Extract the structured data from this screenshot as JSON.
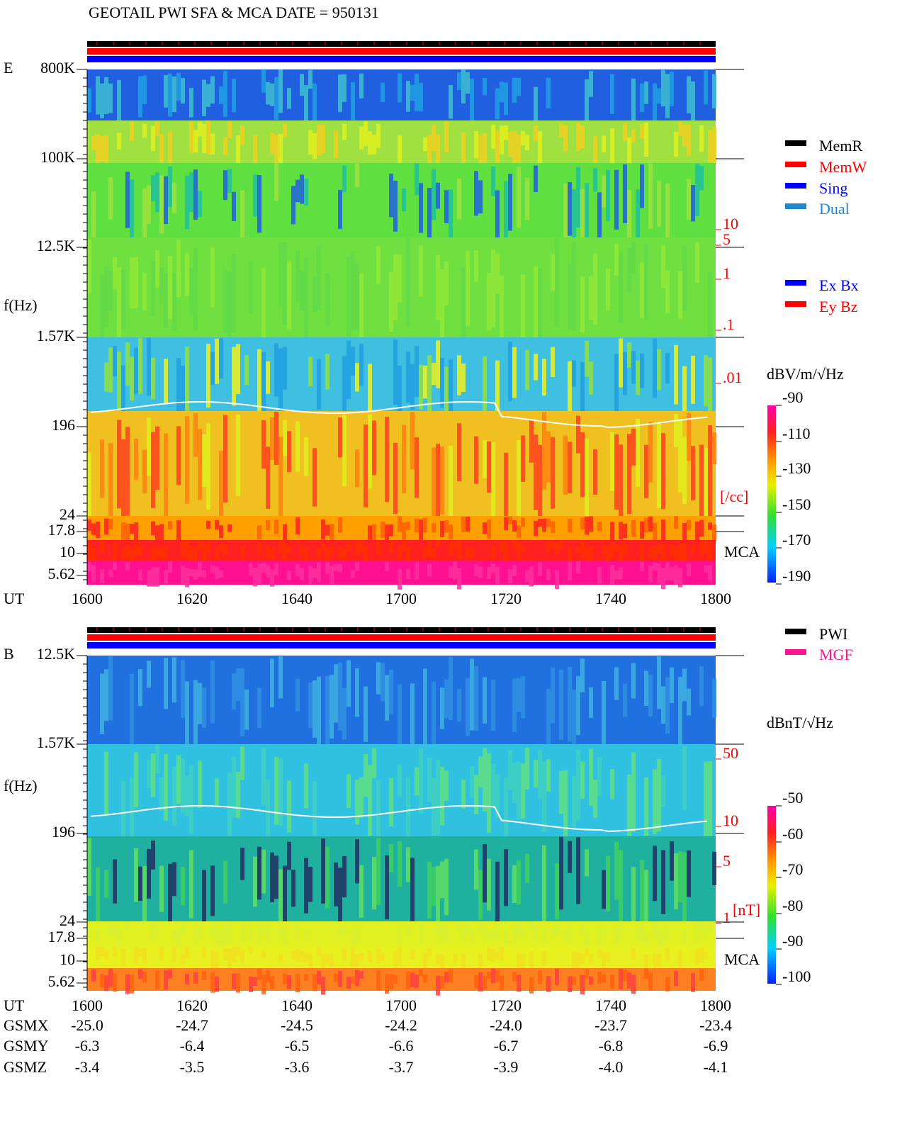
{
  "title": "GEOTAIL   PWI SFA & MCA   DATE = 950131",
  "panels": [
    {
      "label": "E",
      "y_axis_label": "f(Hz)",
      "yticks": [
        "800K",
        "100K",
        "12.5K",
        "1.57K",
        "196",
        "24",
        "17.8",
        "10",
        "5.62"
      ],
      "right_ticks": [
        "10",
        "5",
        "1",
        ".1",
        ".01"
      ],
      "right_unit": "[/cc]",
      "mca": "MCA",
      "colorbar_unit": "dBV/m/√Hz",
      "colorbar_ticks": [
        "-90",
        "-110",
        "-130",
        "-150",
        "-170",
        "-190"
      ],
      "legend": [
        {
          "name": "MemR",
          "color": "#000000"
        },
        {
          "name": "MemW",
          "color": "#ff0000"
        },
        {
          "name": "Sing",
          "color": "#0000ff"
        },
        {
          "name": "Dual",
          "color": "#2288cc"
        },
        {
          "name": "Ex Bx",
          "color": "#0000ff"
        },
        {
          "name": "Ey Bz",
          "color": "#ff0000"
        }
      ]
    },
    {
      "label": "B",
      "y_axis_label": "f(Hz)",
      "yticks": [
        "12.5K",
        "1.57K",
        "196",
        "24",
        "17.8",
        "10",
        "5.62"
      ],
      "right_ticks": [
        "50",
        "10",
        "5",
        "1"
      ],
      "right_unit": "[nT]",
      "mca": "MCA",
      "colorbar_unit": "dBnT/√Hz",
      "colorbar_ticks": [
        "-50",
        "-60",
        "-70",
        "-80",
        "-90",
        "-100"
      ],
      "legend": [
        {
          "name": "PWI",
          "color": "#000000"
        },
        {
          "name": "MGF",
          "color": "#ff1493"
        }
      ]
    }
  ],
  "x_axis": {
    "label": "UT",
    "ticks": [
      "1600",
      "1620",
      "1640",
      "1700",
      "1720",
      "1740",
      "1800"
    ]
  },
  "orbit": [
    {
      "label": "GSMX",
      "values": [
        "-25.0",
        "-24.7",
        "-24.5",
        "-24.2",
        "-24.0",
        "-23.7",
        "-23.4"
      ]
    },
    {
      "label": "GSMY",
      "values": [
        "-6.3",
        "-6.4",
        "-6.5",
        "-6.6",
        "-6.7",
        "-6.8",
        "-6.9"
      ]
    },
    {
      "label": "GSMZ",
      "values": [
        "-3.4",
        "-3.5",
        "-3.6",
        "-3.7",
        "-3.9",
        "-4.0",
        "-4.1"
      ]
    }
  ]
}
